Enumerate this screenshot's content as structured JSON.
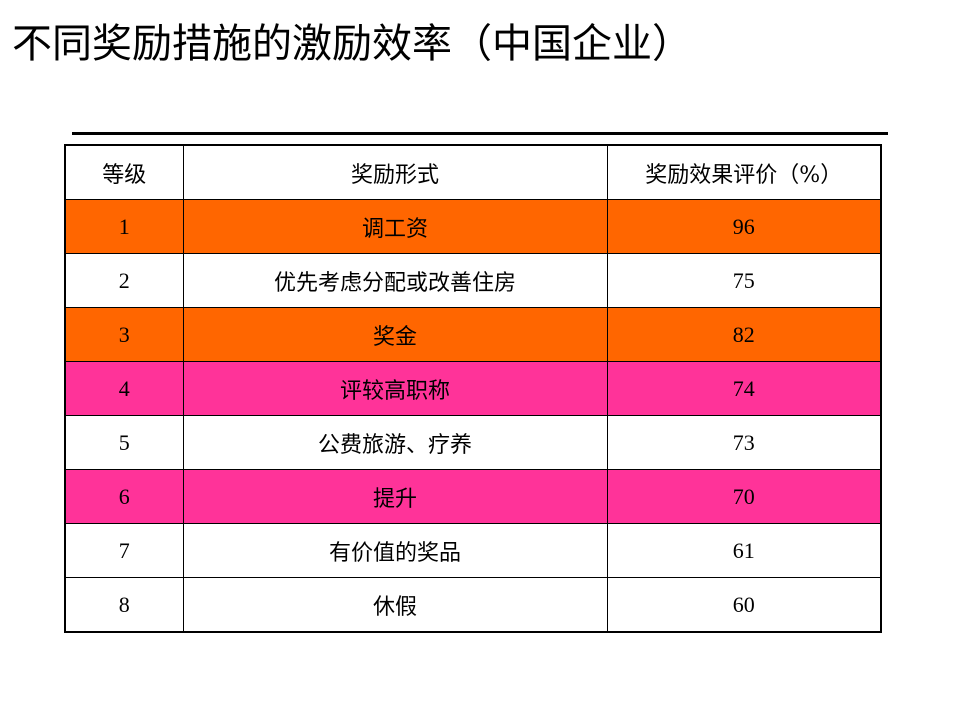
{
  "title": "不同奖励措施的激励效率（中国企业）",
  "table": {
    "headers": [
      "等级",
      "奖励形式",
      "奖励效果评价（%）"
    ],
    "rows": [
      {
        "rank": "1",
        "form": "调工资",
        "score": "96",
        "highlight": "#FF6600"
      },
      {
        "rank": "2",
        "form": "优先考虑分配或改善住房",
        "score": "75",
        "highlight": "#FFFFFF"
      },
      {
        "rank": "3",
        "form": "奖金",
        "score": "82",
        "highlight": "#FF6600"
      },
      {
        "rank": "4",
        "form": "评较高职称",
        "score": "74",
        "highlight": "#FF3399"
      },
      {
        "rank": "5",
        "form": "公费旅游、疗养",
        "score": "73",
        "highlight": "#FFFFFF"
      },
      {
        "rank": "6",
        "form": "提升",
        "score": "70",
        "highlight": "#FF3399"
      },
      {
        "rank": "7",
        "form": "有价值的奖品",
        "score": "61",
        "highlight": "#FFFFFF"
      },
      {
        "rank": "8",
        "form": "休假",
        "score": "60",
        "highlight": "#FFFFFF"
      }
    ]
  }
}
